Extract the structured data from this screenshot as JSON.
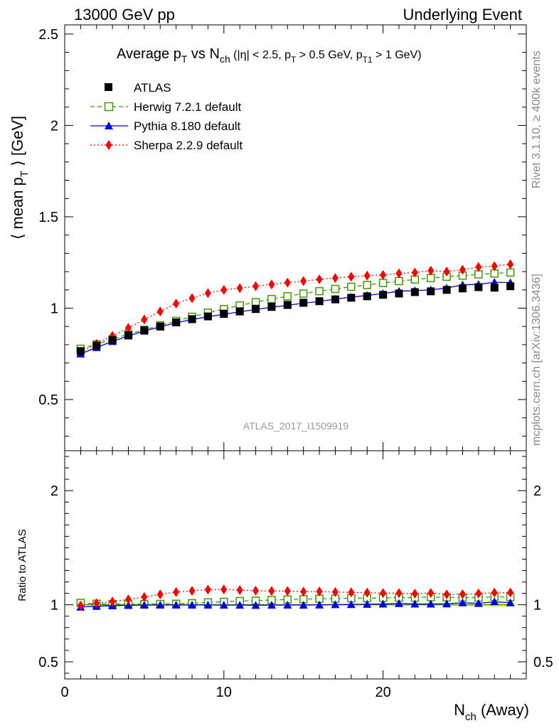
{
  "header": {
    "left": "13000 GeV pp",
    "right": "Underlying Event"
  },
  "side_labels": {
    "rivet": "Rivet 3.1.10, ≥ 400k events",
    "mcplots": "mcplots.cern.ch [arXiv:1306.3436]"
  },
  "watermark": "ATLAS_2017_I1509919",
  "chart_data": [
    {
      "type": "scatter",
      "title": "Average p_T vs N_ch (|η| < 2.5, p_T > 0.5 GeV, p_T1 > 1 GeV)",
      "title_parts": {
        "main": "Average p",
        "t_sub": "T",
        "vs": " vs N",
        "ch_sub": "ch",
        "cuts_a": " (|η| < 2.5, p",
        "cuts_b": " > 0.5 GeV, p",
        "t1_sub": "T1",
        "cuts_c": " > 1 GeV)"
      },
      "ylabel": "⟨ mean p_T ⟩ [GeV]",
      "ylabel_parts": {
        "a": "⟨ mean p",
        "sub": "T",
        "b": " ⟩ [GeV]"
      },
      "xlabel": "",
      "xlim": [
        0,
        29
      ],
      "ylim": [
        0.22,
        2.55
      ],
      "yticks": [
        0.5,
        1,
        1.5,
        2,
        2.5
      ],
      "ytick_labels": [
        "0.5",
        "1",
        "1.5",
        "2",
        "2.5"
      ],
      "x": [
        1,
        2,
        3,
        4,
        5,
        6,
        7,
        8,
        9,
        10,
        11,
        12,
        13,
        14,
        15,
        16,
        17,
        18,
        19,
        20,
        21,
        22,
        23,
        24,
        25,
        26,
        27,
        28
      ],
      "series": [
        {
          "name": "ATLAS",
          "color": "#000000",
          "marker": "square",
          "values": [
            0.765,
            0.795,
            0.825,
            0.852,
            0.878,
            0.9,
            0.922,
            0.94,
            0.955,
            0.97,
            0.983,
            0.997,
            1.008,
            1.018,
            1.03,
            1.038,
            1.048,
            1.057,
            1.065,
            1.073,
            1.08,
            1.088,
            1.092,
            1.1,
            1.108,
            1.115,
            1.112,
            1.12
          ]
        },
        {
          "name": "Herwig 7.2.1 default",
          "color": "#3a9a00",
          "marker": "open-square",
          "dash": "6,4",
          "values": [
            0.778,
            0.802,
            0.83,
            0.858,
            0.882,
            0.906,
            0.93,
            0.953,
            0.975,
            0.995,
            1.015,
            1.033,
            1.05,
            1.065,
            1.08,
            1.093,
            1.105,
            1.117,
            1.127,
            1.138,
            1.148,
            1.157,
            1.165,
            1.172,
            1.178,
            1.185,
            1.19,
            1.195
          ]
        },
        {
          "name": "Pythia 8.180 default",
          "color": "#0000dd",
          "marker": "triangle",
          "values": [
            0.75,
            0.785,
            0.818,
            0.848,
            0.875,
            0.898,
            0.92,
            0.938,
            0.953,
            0.967,
            0.98,
            0.993,
            1.005,
            1.016,
            1.027,
            1.037,
            1.05,
            1.06,
            1.07,
            1.08,
            1.093,
            1.096,
            1.1,
            1.11,
            1.128,
            1.13,
            1.142,
            1.14
          ]
        },
        {
          "name": "Sherpa 2.2.9 default",
          "color": "#ff0000",
          "marker": "diamond",
          "dash": "2,3",
          "values": [
            0.76,
            0.805,
            0.848,
            0.892,
            0.938,
            0.982,
            1.025,
            1.055,
            1.082,
            1.1,
            1.11,
            1.12,
            1.13,
            1.14,
            1.148,
            1.158,
            1.165,
            1.172,
            1.178,
            1.182,
            1.19,
            1.195,
            1.205,
            1.2,
            1.21,
            1.225,
            1.23,
            1.24
          ]
        }
      ],
      "legend": [
        "ATLAS",
        "Herwig 7.2.1 default",
        "Pythia 8.180 default",
        "Sherpa 2.2.9 default"
      ]
    },
    {
      "type": "line",
      "ylabel": "Ratio to ATLAS",
      "xlabel": "N_ch (Away)",
      "xlabel_parts": {
        "a": "N",
        "sub": "ch",
        "b": " (Away)"
      },
      "xlim": [
        0,
        29
      ],
      "ylim": [
        0.35,
        2.35
      ],
      "xticks": [
        0,
        10,
        20
      ],
      "xtick_labels": [
        "0",
        "10",
        "20"
      ],
      "yticks": [
        0.5,
        1,
        2
      ],
      "ytick_labels": [
        "0.5",
        "1",
        "2"
      ],
      "x": [
        1,
        2,
        3,
        4,
        5,
        6,
        7,
        8,
        9,
        10,
        11,
        12,
        13,
        14,
        15,
        16,
        17,
        18,
        19,
        20,
        21,
        22,
        23,
        24,
        25,
        26,
        27,
        28
      ],
      "series": [
        {
          "name": "Herwig 7.2.1 default",
          "color": "#3a9a00",
          "marker": "open-square",
          "dash": "6,4",
          "values": [
            1.017,
            1.009,
            1.006,
            1.007,
            1.005,
            1.007,
            1.009,
            1.014,
            1.021,
            1.026,
            1.033,
            1.036,
            1.042,
            1.046,
            1.049,
            1.053,
            1.054,
            1.057,
            1.058,
            1.061,
            1.063,
            1.063,
            1.067,
            1.065,
            1.063,
            1.063,
            1.07,
            1.067
          ]
        },
        {
          "name": "Pythia 8.180 default",
          "color": "#0000dd",
          "marker": "triangle",
          "values": [
            0.98,
            0.987,
            0.992,
            0.995,
            0.997,
            0.998,
            0.998,
            0.998,
            0.998,
            0.997,
            0.997,
            0.996,
            0.997,
            0.998,
            0.997,
            0.999,
            1.002,
            1.003,
            1.005,
            1.007,
            1.012,
            1.007,
            1.007,
            1.009,
            1.018,
            1.013,
            1.027,
            1.018
          ]
        },
        {
          "name": "Sherpa 2.2.9 default",
          "color": "#ff0000",
          "marker": "diamond",
          "dash": "2,3",
          "values": [
            0.993,
            1.013,
            1.028,
            1.047,
            1.068,
            1.091,
            1.112,
            1.122,
            1.133,
            1.134,
            1.129,
            1.123,
            1.121,
            1.12,
            1.115,
            1.116,
            1.112,
            1.109,
            1.106,
            1.102,
            1.102,
            1.098,
            1.103,
            1.091,
            1.092,
            1.099,
            1.106,
            1.107
          ]
        }
      ]
    }
  ]
}
